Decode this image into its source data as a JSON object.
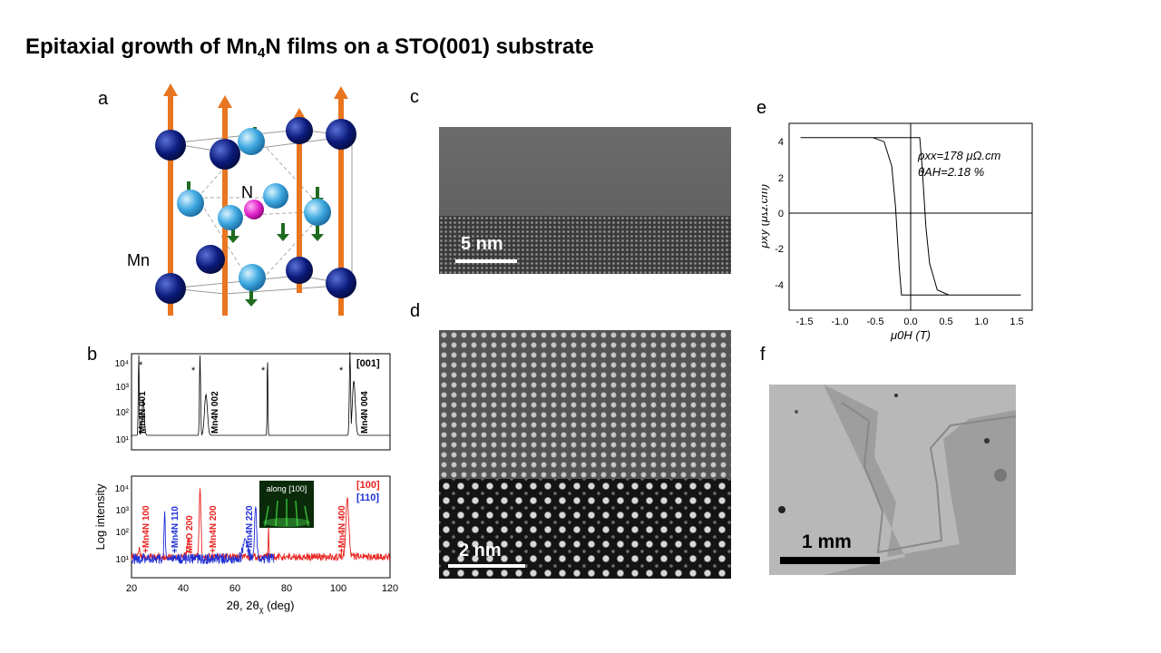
{
  "slide": {
    "title_pre": "Epitaxial growth of Mn",
    "title_sub": "4",
    "title_post": "N films on a STO(001) substrate"
  },
  "panels": {
    "a": {
      "label": "a",
      "atom_N": "N",
      "atom_Mn": "Mn"
    },
    "b": {
      "label": "b",
      "ylabel": "Log intensity",
      "xlabel": "2θ, 2θ",
      "xlabel_sub": "χ",
      "xlabel_unit": " (deg)",
      "top_dir": "[001]",
      "bottom_dir_red": "[100]",
      "bottom_dir_blue": "[110]",
      "inset_text": "along [100]",
      "top_peaks": [
        "Mn4N 001",
        "Mn4N 002",
        "Mn4N 004"
      ],
      "bottom_peaks": [
        "+Mn4N 100",
        "+Mn4N 110",
        "MnO 200",
        "+Mn4N 200",
        "+Mn4N 220",
        "+Mn4N 400"
      ],
      "x_ticks": [
        "20",
        "40",
        "60",
        "80",
        "100",
        "120"
      ],
      "y_ticks_top": [
        "10¹",
        "10²",
        "10³",
        "10⁴"
      ],
      "y_ticks_bottom": [
        "10¹",
        "10²",
        "10³",
        "10⁴"
      ],
      "star": "*"
    },
    "c": {
      "label": "c",
      "scale": "5 nm"
    },
    "d": {
      "label": "d",
      "scale": "2 nm"
    },
    "e": {
      "label": "e",
      "ylabel": "ρxy (μΩ.cm)",
      "xlabel": "μ0H (T)",
      "annot1": "ρxx=178 μΩ.cm",
      "annot2": "θAH=2.18 %",
      "x_ticks": [
        "-1.5",
        "-1.0",
        "-0.5",
        "0.0",
        "0.5",
        "1.0",
        "1.5"
      ],
      "y_ticks": [
        "4",
        "2",
        "0",
        "-2",
        "-4"
      ]
    },
    "f": {
      "label": "f",
      "scale": "1 mm"
    }
  },
  "colors": {
    "red": "#e8231f",
    "blue": "#1f2fd6",
    "mn": "#0b1a7a",
    "tip": "#e8751f",
    "light": "#3ea9e0",
    "n_atom": "#e020c8",
    "arrow_green": "#1f6b1f"
  },
  "chart_data": [
    {
      "type": "line",
      "title": "",
      "xlabel": "μ0H (T)",
      "ylabel": "ρxy (μΩ.cm)",
      "xlim": [
        -1.6,
        1.6
      ],
      "ylim": [
        -4.6,
        4.6
      ],
      "series": [
        {
          "x": [
            -1.45,
            -0.5,
            -0.35,
            -0.25,
            -0.2,
            -0.15,
            -0.12,
            1.45
          ],
          "y": [
            3.9,
            3.9,
            3.7,
            2.5,
            0.5,
            -2.5,
            -3.85,
            -3.85
          ]
        },
        {
          "x": [
            1.45,
            0.5,
            0.35,
            0.25,
            0.2,
            0.15,
            0.12,
            -1.45
          ],
          "y": [
            -3.85,
            -3.85,
            -3.6,
            -2.3,
            -0.5,
            2.5,
            3.9,
            3.9
          ]
        }
      ]
    }
  ]
}
